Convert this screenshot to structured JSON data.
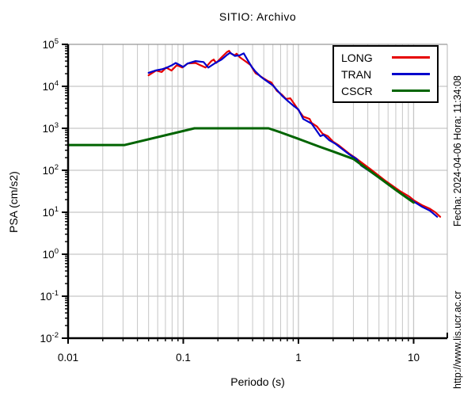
{
  "chart_data": {
    "type": "line",
    "title": "SITIO: Archivo",
    "xlabel": "Periodo (s)",
    "ylabel": "PSA (cm/s2)",
    "xscale": "log",
    "yscale": "log",
    "xlim": [
      0.01,
      19.6
    ],
    "ylim": [
      0.01,
      100000
    ],
    "grid": true,
    "legend_position": "top-right",
    "x_ticks": [
      {
        "label": "0.01",
        "value": 0.01
      },
      {
        "label": "0.1",
        "value": 0.1
      },
      {
        "label": "1",
        "value": 1
      },
      {
        "label": "10",
        "value": 10
      }
    ],
    "y_tick_exponents": [
      5,
      4,
      3,
      2,
      1,
      0,
      -1,
      -2
    ],
    "series": [
      {
        "name": "LONG",
        "color": "#e60000",
        "x": [
          0.05,
          0.058,
          0.065,
          0.071,
          0.079,
          0.088,
          0.098,
          0.109,
          0.128,
          0.14,
          0.156,
          0.175,
          0.184,
          0.193,
          0.215,
          0.24,
          0.25,
          0.26,
          0.28,
          0.29,
          0.31,
          0.345,
          0.385,
          0.405,
          0.425,
          0.45,
          0.5,
          0.54,
          0.58,
          0.65,
          0.72,
          0.78,
          0.85,
          0.93,
          1.0,
          1.1,
          1.25,
          1.3,
          1.45,
          1.62,
          1.8,
          2.0,
          2.25,
          2.75,
          3.1,
          3.5,
          4.2,
          5.8,
          7.6,
          9.2,
          10.1,
          11.9,
          13.7,
          15.4,
          17.0
        ],
        "y": [
          18300,
          23700,
          22000,
          28000,
          23700,
          32000,
          28000,
          35000,
          36000,
          32000,
          28000,
          40000,
          43500,
          36000,
          49000,
          66000,
          70000,
          60000,
          55000,
          60000,
          49000,
          40000,
          32000,
          25000,
          20500,
          18800,
          15400,
          13500,
          12400,
          7800,
          6300,
          5000,
          5200,
          3650,
          2700,
          1900,
          1670,
          1350,
          1100,
          740,
          650,
          480,
          390,
          250,
          200,
          156,
          107,
          54,
          32,
          23.5,
          19,
          14.6,
          12.3,
          10,
          7.8
        ]
      },
      {
        "name": "TRAN",
        "color": "#0000cc",
        "x": [
          0.05,
          0.058,
          0.065,
          0.071,
          0.08,
          0.086,
          0.1,
          0.109,
          0.128,
          0.15,
          0.165,
          0.19,
          0.215,
          0.24,
          0.255,
          0.28,
          0.31,
          0.335,
          0.36,
          0.39,
          0.42,
          0.47,
          0.5,
          0.6,
          0.72,
          0.8,
          0.9,
          1.0,
          1.1,
          1.3,
          1.55,
          1.65,
          1.85,
          2.1,
          2.75,
          3.2,
          3.5,
          4.2,
          5.8,
          7.6,
          10.0,
          11.9,
          13.9,
          16.0
        ],
        "y": [
          21000,
          24000,
          25500,
          27500,
          32000,
          36000,
          29000,
          35000,
          40000,
          38000,
          28000,
          36000,
          43500,
          56000,
          63000,
          53000,
          55000,
          61000,
          43500,
          30000,
          23000,
          17000,
          15000,
          10500,
          6000,
          4600,
          3500,
          2800,
          1670,
          1300,
          650,
          700,
          520,
          425,
          240,
          185,
          130,
          93,
          50,
          29,
          18,
          13.4,
          10.8,
          7.8
        ]
      },
      {
        "name": "CSCR",
        "color": "#006400",
        "x": [
          0.01,
          0.031,
          0.125,
          0.55,
          0.7,
          1.0,
          1.5,
          2.0,
          3.0,
          4.0,
          5.0,
          7.0,
          10.0
        ],
        "y": [
          400,
          400,
          1000,
          1000,
          800,
          560,
          370,
          280,
          186,
          105,
          67,
          34,
          17
        ]
      }
    ]
  },
  "annotations": {
    "fecha": "Fecha: 2024-04-06 Hora: 11:34:08",
    "url": "http://www.lis.ucr.ac.cr"
  },
  "colors": {
    "grid": "#c6c6c6",
    "axis": "#000000",
    "frame_top": "#8a8a8a",
    "frame_right": "#b4b4b4",
    "background": "#ffffff"
  }
}
